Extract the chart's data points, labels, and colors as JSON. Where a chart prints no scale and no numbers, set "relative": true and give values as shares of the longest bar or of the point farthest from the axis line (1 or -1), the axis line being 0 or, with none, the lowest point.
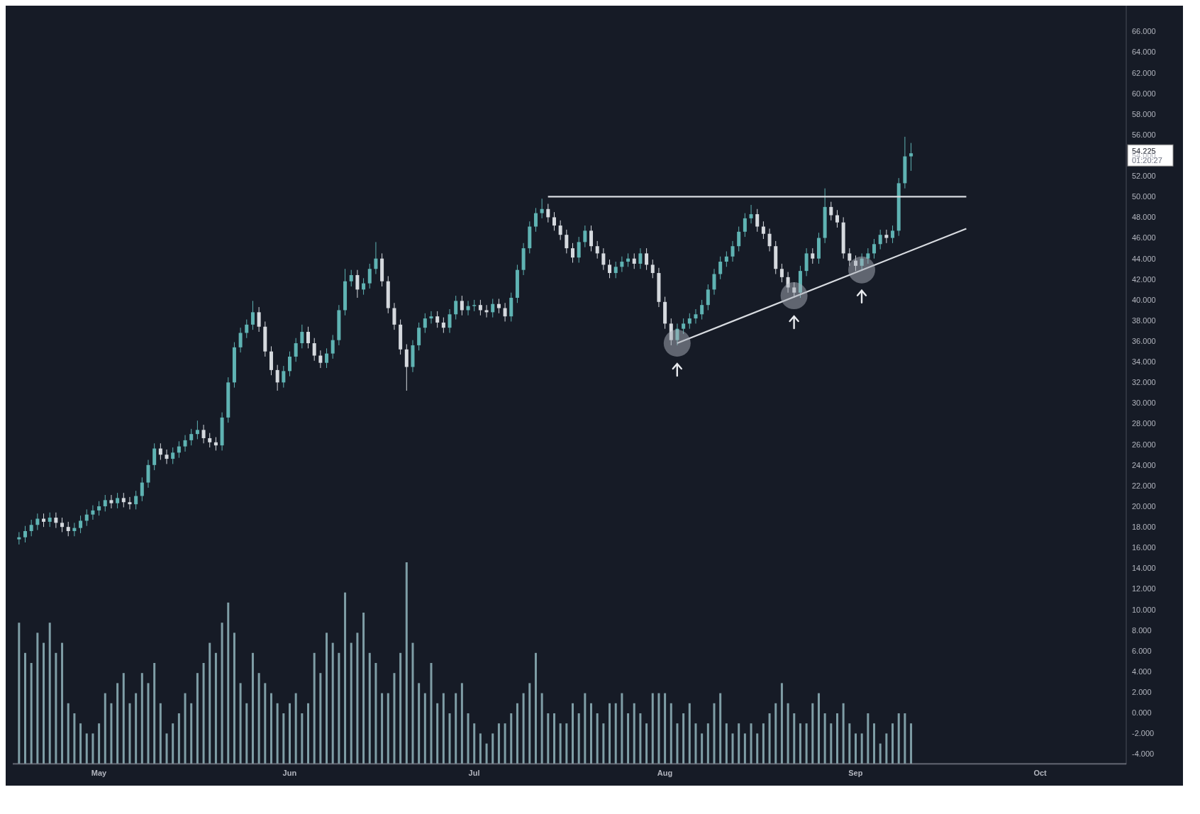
{
  "chart_data": [
    {
      "type": "candlestick",
      "x": [
        "--04-18",
        "--04-19",
        "--04-20",
        "--04-21",
        "--04-22",
        "--04-23",
        "--04-24",
        "--04-25",
        "--04-26",
        "--04-27",
        "--04-28",
        "--04-29",
        "--04-30",
        "--05-01",
        "--05-02",
        "--05-03",
        "--05-04",
        "--05-05",
        "--05-06",
        "--05-07",
        "--05-08",
        "--05-09",
        "--05-10",
        "--05-11",
        "--05-12",
        "--05-13",
        "--05-14",
        "--05-15",
        "--05-16",
        "--05-17",
        "--05-18",
        "--05-19",
        "--05-20",
        "--05-21",
        "--05-22",
        "--05-23",
        "--05-24",
        "--05-25",
        "--05-26",
        "--05-27",
        "--05-28",
        "--05-29",
        "--05-30",
        "--05-31",
        "--06-01",
        "--06-02",
        "--06-03",
        "--06-04",
        "--06-05",
        "--06-06",
        "--06-07",
        "--06-08",
        "--06-09",
        "--06-10",
        "--06-11",
        "--06-12",
        "--06-13",
        "--06-14",
        "--06-15",
        "--06-16",
        "--06-17",
        "--06-18",
        "--06-19",
        "--06-20",
        "--06-21",
        "--06-22",
        "--06-23",
        "--06-24",
        "--06-25",
        "--06-26",
        "--06-27",
        "--06-28",
        "--06-29",
        "--06-30",
        "--07-01",
        "--07-02",
        "--07-03",
        "--07-04",
        "--07-05",
        "--07-06",
        "--07-07",
        "--07-08",
        "--07-09",
        "--07-10",
        "--07-11",
        "--07-12",
        "--07-13",
        "--07-14",
        "--07-15",
        "--07-16",
        "--07-17",
        "--07-18",
        "--07-19",
        "--07-20",
        "--07-21",
        "--07-22",
        "--07-23",
        "--07-24",
        "--07-25",
        "--07-26",
        "--07-27",
        "--07-28",
        "--07-29",
        "--07-30",
        "--07-31",
        "--08-01",
        "--08-02",
        "--08-03",
        "--08-04",
        "--08-05",
        "--08-06",
        "--08-07",
        "--08-08",
        "--08-09",
        "--08-10",
        "--08-11",
        "--08-12",
        "--08-13",
        "--08-14",
        "--08-15",
        "--08-16",
        "--08-17",
        "--08-18",
        "--08-19",
        "--08-20",
        "--08-21",
        "--08-22",
        "--08-23",
        "--08-24",
        "--08-25",
        "--08-26",
        "--08-27",
        "--08-28",
        "--08-29",
        "--08-30",
        "--08-31",
        "--09-01",
        "--09-02",
        "--09-03",
        "--09-04",
        "--09-05",
        "--09-06",
        "--09-07",
        "--09-08",
        "--09-09",
        "--09-10"
      ],
      "ohlc": [
        [
          16.8,
          17.5,
          16.3,
          17.0
        ],
        [
          17.0,
          18.1,
          16.5,
          17.6
        ],
        [
          17.6,
          18.7,
          17.1,
          18.2
        ],
        [
          18.2,
          19.3,
          17.7,
          18.8
        ],
        [
          18.8,
          19.3,
          18.0,
          18.5
        ],
        [
          18.5,
          19.4,
          18.0,
          18.9
        ],
        [
          18.9,
          19.4,
          17.9,
          18.4
        ],
        [
          18.4,
          18.9,
          17.5,
          18.0
        ],
        [
          18.0,
          18.5,
          17.1,
          17.6
        ],
        [
          17.6,
          18.4,
          17.1,
          17.9
        ],
        [
          17.9,
          19.1,
          17.4,
          18.6
        ],
        [
          18.6,
          19.7,
          18.1,
          19.2
        ],
        [
          19.2,
          20.1,
          18.7,
          19.6
        ],
        [
          19.6,
          20.5,
          19.1,
          20.0
        ],
        [
          20.0,
          21.1,
          19.5,
          20.6
        ],
        [
          20.6,
          21.1,
          19.8,
          20.3
        ],
        [
          20.3,
          21.3,
          19.8,
          20.8
        ],
        [
          20.8,
          21.3,
          19.9,
          20.4
        ],
        [
          20.4,
          20.9,
          19.7,
          20.2
        ],
        [
          20.2,
          21.5,
          19.7,
          21.0
        ],
        [
          21.0,
          22.8,
          20.5,
          22.3
        ],
        [
          22.3,
          24.5,
          21.8,
          24.0
        ],
        [
          24.0,
          26.1,
          23.5,
          25.6
        ],
        [
          25.6,
          26.1,
          24.5,
          25.0
        ],
        [
          25.0,
          25.5,
          24.1,
          24.6
        ],
        [
          24.6,
          25.7,
          24.1,
          25.2
        ],
        [
          25.2,
          26.3,
          24.7,
          25.8
        ],
        [
          25.8,
          26.9,
          25.3,
          26.4
        ],
        [
          26.4,
          27.5,
          25.9,
          27.0
        ],
        [
          27.0,
          28.3,
          26.5,
          27.4
        ],
        [
          27.4,
          27.9,
          26.1,
          26.6
        ],
        [
          26.6,
          27.1,
          25.7,
          26.2
        ],
        [
          26.2,
          26.7,
          25.4,
          25.9
        ],
        [
          25.9,
          29.1,
          25.4,
          28.6
        ],
        [
          28.6,
          32.5,
          28.1,
          32.0
        ],
        [
          32.0,
          35.9,
          31.5,
          35.4
        ],
        [
          35.4,
          37.3,
          34.9,
          36.8
        ],
        [
          36.8,
          38.1,
          36.3,
          37.6
        ],
        [
          37.6,
          39.9,
          37.1,
          38.8
        ],
        [
          38.8,
          39.3,
          36.9,
          37.4
        ],
        [
          37.4,
          37.9,
          34.5,
          35.0
        ],
        [
          35.0,
          35.5,
          32.7,
          33.2
        ],
        [
          33.2,
          33.7,
          31.2,
          32.0
        ],
        [
          32.0,
          33.6,
          31.5,
          33.1
        ],
        [
          33.1,
          35.0,
          32.6,
          34.5
        ],
        [
          34.5,
          36.3,
          34.0,
          35.8
        ],
        [
          35.8,
          37.6,
          35.3,
          36.9
        ],
        [
          36.9,
          37.4,
          35.3,
          35.8
        ],
        [
          35.8,
          36.3,
          34.1,
          34.6
        ],
        [
          34.6,
          35.1,
          33.4,
          33.9
        ],
        [
          33.9,
          35.3,
          33.4,
          34.8
        ],
        [
          34.8,
          36.6,
          34.3,
          36.1
        ],
        [
          36.1,
          39.5,
          35.6,
          39.0
        ],
        [
          39.0,
          43.0,
          38.5,
          41.8
        ],
        [
          41.8,
          42.9,
          41.3,
          42.4
        ],
        [
          42.4,
          42.9,
          40.2,
          41.0
        ],
        [
          41.0,
          42.1,
          40.5,
          41.6
        ],
        [
          41.6,
          43.5,
          41.1,
          43.0
        ],
        [
          43.0,
          45.6,
          42.5,
          44.0
        ],
        [
          44.0,
          44.5,
          41.3,
          41.8
        ],
        [
          41.8,
          42.3,
          38.7,
          39.2
        ],
        [
          39.2,
          39.7,
          37.1,
          37.6
        ],
        [
          37.6,
          38.1,
          34.7,
          35.2
        ],
        [
          35.2,
          35.7,
          31.2,
          33.5
        ],
        [
          33.5,
          36.1,
          33.0,
          35.6
        ],
        [
          35.6,
          37.8,
          35.1,
          37.3
        ],
        [
          37.3,
          38.7,
          36.8,
          38.2
        ],
        [
          38.2,
          38.9,
          37.7,
          38.4
        ],
        [
          38.4,
          38.9,
          37.3,
          37.8
        ],
        [
          37.8,
          38.3,
          36.8,
          37.3
        ],
        [
          37.3,
          39.1,
          36.8,
          38.6
        ],
        [
          38.6,
          40.4,
          38.1,
          39.9
        ],
        [
          39.9,
          40.4,
          38.5,
          39.0
        ],
        [
          39.0,
          39.9,
          38.5,
          39.4
        ],
        [
          39.4,
          40.0,
          38.9,
          39.5
        ],
        [
          39.5,
          40.0,
          38.5,
          39.0
        ],
        [
          39.0,
          39.5,
          38.3,
          38.8
        ],
        [
          38.8,
          40.1,
          38.3,
          39.6
        ],
        [
          39.6,
          40.1,
          38.7,
          39.2
        ],
        [
          39.2,
          39.7,
          37.9,
          38.4
        ],
        [
          38.4,
          40.7,
          37.9,
          40.2
        ],
        [
          40.2,
          43.4,
          39.7,
          42.9
        ],
        [
          42.9,
          45.5,
          42.4,
          45.0
        ],
        [
          45.0,
          47.6,
          44.5,
          47.1
        ],
        [
          47.1,
          48.9,
          46.6,
          48.4
        ],
        [
          48.4,
          49.8,
          47.9,
          48.8
        ],
        [
          48.8,
          49.3,
          47.5,
          48.0
        ],
        [
          48.0,
          48.5,
          46.7,
          47.2
        ],
        [
          47.2,
          47.7,
          45.8,
          46.3
        ],
        [
          46.3,
          46.8,
          44.5,
          45.0
        ],
        [
          45.0,
          45.5,
          43.6,
          44.1
        ],
        [
          44.1,
          46.1,
          43.6,
          45.6
        ],
        [
          45.6,
          47.2,
          45.1,
          46.7
        ],
        [
          46.7,
          47.2,
          44.7,
          45.2
        ],
        [
          45.2,
          45.7,
          44.0,
          44.5
        ],
        [
          44.5,
          45.0,
          42.9,
          43.4
        ],
        [
          43.4,
          43.9,
          42.1,
          42.6
        ],
        [
          42.6,
          43.7,
          42.1,
          43.2
        ],
        [
          43.2,
          44.2,
          42.7,
          43.7
        ],
        [
          43.7,
          44.5,
          43.2,
          44.0
        ],
        [
          44.0,
          44.5,
          43.0,
          43.5
        ],
        [
          43.5,
          45.0,
          43.0,
          44.5
        ],
        [
          44.5,
          45.0,
          42.9,
          43.4
        ],
        [
          43.4,
          43.9,
          42.1,
          42.6
        ],
        [
          42.6,
          43.1,
          39.3,
          39.8
        ],
        [
          39.8,
          40.3,
          37.2,
          37.7
        ],
        [
          37.7,
          38.2,
          35.6,
          36.1
        ],
        [
          36.1,
          37.7,
          35.6,
          37.2
        ],
        [
          37.2,
          38.2,
          36.7,
          37.7
        ],
        [
          37.7,
          38.7,
          37.2,
          38.2
        ],
        [
          38.2,
          39.1,
          37.7,
          38.6
        ],
        [
          38.6,
          40.0,
          38.1,
          39.5
        ],
        [
          39.5,
          41.5,
          39.0,
          41.0
        ],
        [
          41.0,
          43.0,
          40.5,
          42.5
        ],
        [
          42.5,
          44.2,
          42.0,
          43.7
        ],
        [
          43.7,
          44.7,
          43.2,
          44.2
        ],
        [
          44.2,
          45.7,
          43.7,
          45.2
        ],
        [
          45.2,
          47.1,
          44.7,
          46.6
        ],
        [
          46.6,
          48.4,
          46.1,
          47.9
        ],
        [
          47.9,
          49.2,
          47.4,
          48.3
        ],
        [
          48.3,
          48.8,
          46.6,
          47.1
        ],
        [
          47.1,
          47.6,
          45.9,
          46.4
        ],
        [
          46.4,
          46.9,
          44.7,
          45.2
        ],
        [
          45.2,
          45.7,
          42.5,
          43.0
        ],
        [
          43.0,
          43.5,
          41.7,
          42.2
        ],
        [
          42.2,
          42.7,
          40.7,
          41.2
        ],
        [
          41.2,
          41.7,
          40.2,
          40.7
        ],
        [
          40.7,
          43.3,
          40.2,
          42.8
        ],
        [
          42.8,
          45.0,
          42.3,
          44.5
        ],
        [
          44.5,
          45.0,
          43.5,
          44.0
        ],
        [
          44.0,
          46.5,
          43.5,
          46.0
        ],
        [
          46.0,
          50.8,
          45.5,
          49.0
        ],
        [
          49.0,
          49.5,
          47.7,
          48.2
        ],
        [
          48.2,
          48.7,
          47.0,
          47.5
        ],
        [
          47.5,
          48.0,
          44.0,
          44.5
        ],
        [
          44.5,
          45.0,
          43.3,
          43.8
        ],
        [
          43.8,
          44.3,
          42.8,
          43.3
        ],
        [
          43.3,
          44.5,
          42.8,
          44.0
        ],
        [
          44.0,
          45.0,
          43.5,
          44.5
        ],
        [
          44.5,
          45.9,
          44.0,
          45.4
        ],
        [
          45.4,
          46.8,
          44.9,
          46.3
        ],
        [
          46.3,
          46.8,
          45.5,
          46.0
        ],
        [
          46.0,
          47.2,
          45.5,
          46.7
        ],
        [
          46.7,
          51.8,
          46.2,
          51.3
        ],
        [
          51.3,
          55.8,
          50.8,
          53.9
        ],
        [
          53.9,
          55.2,
          52.5,
          54.2
        ]
      ],
      "colors": [
        "#5fb3b3",
        "#5fb3b3",
        "#5fb3b3",
        "#5fb3b3",
        "#d5d9de",
        "#5fb3b3",
        "#d5d9de",
        "#d5d9de",
        "#d5d9de",
        "#5fb3b3",
        "#5fb3b3",
        "#5fb3b3",
        "#5fb3b3",
        "#5fb3b3",
        "#5fb3b3",
        "#d5d9de",
        "#5fb3b3",
        "#d5d9de",
        "#d5d9de",
        "#5fb3b3",
        "#5fb3b3",
        "#5fb3b3",
        "#5fb3b3",
        "#d5d9de",
        "#d5d9de",
        "#5fb3b3",
        "#5fb3b3",
        "#5fb3b3",
        "#5fb3b3",
        "#5fb3b3",
        "#d5d9de",
        "#d5d9de",
        "#d5d9de",
        "#5fb3b3",
        "#5fb3b3",
        "#5fb3b3",
        "#5fb3b3",
        "#5fb3b3",
        "#5fb3b3",
        "#d5d9de",
        "#d5d9de",
        "#d5d9de",
        "#d5d9de",
        "#5fb3b3",
        "#5fb3b3",
        "#5fb3b3",
        "#5fb3b3",
        "#d5d9de",
        "#d5d9de",
        "#d5d9de",
        "#5fb3b3",
        "#5fb3b3",
        "#5fb3b3",
        "#5fb3b3",
        "#5fb3b3",
        "#d5d9de",
        "#5fb3b3",
        "#5fb3b3",
        "#5fb3b3",
        "#d5d9de",
        "#d5d9de",
        "#d5d9de",
        "#d5d9de",
        "#d5d9de",
        "#5fb3b3",
        "#5fb3b3",
        "#5fb3b3",
        "#5fb3b3",
        "#d5d9de",
        "#d5d9de",
        "#5fb3b3",
        "#5fb3b3",
        "#d5d9de",
        "#5fb3b3",
        "#5fb3b3",
        "#d5d9de",
        "#d5d9de",
        "#5fb3b3",
        "#d5d9de",
        "#d5d9de",
        "#5fb3b3",
        "#5fb3b3",
        "#5fb3b3",
        "#5fb3b3",
        "#5fb3b3",
        "#5fb3b3",
        "#d5d9de",
        "#d5d9de",
        "#d5d9de",
        "#d5d9de",
        "#d5d9de",
        "#5fb3b3",
        "#5fb3b3",
        "#d5d9de",
        "#d5d9de",
        "#d5d9de",
        "#d5d9de",
        "#5fb3b3",
        "#5fb3b3",
        "#5fb3b3",
        "#d5d9de",
        "#5fb3b3",
        "#d5d9de",
        "#d5d9de",
        "#d5d9de",
        "#d5d9de",
        "#d5d9de",
        "#5fb3b3",
        "#5fb3b3",
        "#5fb3b3",
        "#5fb3b3",
        "#5fb3b3",
        "#5fb3b3",
        "#5fb3b3",
        "#5fb3b3",
        "#5fb3b3",
        "#5fb3b3",
        "#5fb3b3",
        "#5fb3b3",
        "#5fb3b3",
        "#d5d9de",
        "#d5d9de",
        "#d5d9de",
        "#d5d9de",
        "#d5d9de",
        "#d5d9de",
        "#d5d9de",
        "#5fb3b3",
        "#5fb3b3",
        "#d5d9de",
        "#5fb3b3",
        "#5fb3b3",
        "#d5d9de",
        "#d5d9de",
        "#d5d9de",
        "#d5d9de",
        "#d5d9de",
        "#5fb3b3",
        "#5fb3b3",
        "#5fb3b3",
        "#5fb3b3",
        "#d5d9de",
        "#5fb3b3",
        "#5fb3b3",
        "#5fb3b3",
        "#5fb3b3"
      ],
      "series": [
        {
          "type": "line",
          "x": [
            "--07-13",
            "--09-19"
          ],
          "values": [
            50,
            50
          ],
          "color": "#d8dbe0"
        },
        {
          "type": "line",
          "x": [
            "--08-03",
            "--09-19"
          ],
          "values": [
            35.8,
            46.9
          ],
          "color": "#d8dbe0"
        },
        {
          "type": "scatter",
          "x": [
            "--08-03",
            "--08-22",
            "--09-02"
          ],
          "values": [
            35.8,
            40.4,
            42.9
          ],
          "color": "#aaafb9",
          "marker": "circle"
        }
      ],
      "annotations": [
        "54.225",
        "01:20:27"
      ],
      "xlim": [
        "--04-17",
        "--10-15"
      ],
      "xticks": [
        {
          "value": "--05-01",
          "label": "May"
        },
        {
          "value": "--06-01",
          "label": "Jun"
        },
        {
          "value": "--07-01",
          "label": "Jul"
        },
        {
          "value": "--08-01",
          "label": "Aug"
        },
        {
          "value": "--09-01",
          "label": "Sep"
        },
        {
          "value": "--10-01",
          "label": "Oct"
        }
      ],
      "ylim": [
        -5,
        68.5
      ],
      "yticks": [
        {
          "value": -4,
          "label": "-4.000"
        },
        {
          "value": -2,
          "label": "-2.000"
        },
        {
          "value": 0,
          "label": "0.000"
        },
        {
          "value": 2,
          "label": "2.000"
        },
        {
          "value": 4,
          "label": "4.000"
        },
        {
          "value": 6,
          "label": "6.000"
        },
        {
          "value": 8,
          "label": "8.000"
        },
        {
          "value": 10,
          "label": "10.000"
        },
        {
          "value": 12,
          "label": "12.000"
        },
        {
          "value": 14,
          "label": "14.000"
        },
        {
          "value": 16,
          "label": "16.000"
        },
        {
          "value": 18,
          "label": "18.000"
        },
        {
          "value": 20,
          "label": "20.000"
        },
        {
          "value": 22,
          "label": "22.000"
        },
        {
          "value": 24,
          "label": "24.000"
        },
        {
          "value": 26,
          "label": "26.000"
        },
        {
          "value": 28,
          "label": "28.000"
        },
        {
          "value": 30,
          "label": "30.000"
        },
        {
          "value": 32,
          "label": "32.000"
        },
        {
          "value": 34,
          "label": "34.000"
        },
        {
          "value": 36,
          "label": "36.000"
        },
        {
          "value": 38,
          "label": "38.000"
        },
        {
          "value": 40,
          "label": "40.000"
        },
        {
          "value": 42,
          "label": "42.000"
        },
        {
          "value": 44,
          "label": "44.000"
        },
        {
          "value": 46,
          "label": "46.000"
        },
        {
          "value": 48,
          "label": "48.000"
        },
        {
          "value": 50,
          "label": "50.000"
        },
        {
          "value": 52,
          "label": "52.000"
        },
        {
          "value": 54,
          "label": "54.000"
        },
        {
          "value": 56,
          "label": "56.000"
        },
        {
          "value": 58,
          "label": "58.000"
        },
        {
          "value": 60,
          "label": "60.000"
        },
        {
          "value": 62,
          "label": "62.000"
        },
        {
          "value": 64,
          "label": "64.000"
        },
        {
          "value": 66,
          "label": "66.000"
        }
      ]
    },
    {
      "type": "bar",
      "relative": true,
      "tick_labels": false,
      "color": "#7f9ea6",
      "xlim": [
        "--04-17",
        "--10-15"
      ],
      "x": [
        "--04-18",
        "--04-19",
        "--04-20",
        "--04-21",
        "--04-22",
        "--04-23",
        "--04-24",
        "--04-25",
        "--04-26",
        "--04-27",
        "--04-28",
        "--04-29",
        "--04-30",
        "--05-01",
        "--05-02",
        "--05-03",
        "--05-04",
        "--05-05",
        "--05-06",
        "--05-07",
        "--05-08",
        "--05-09",
        "--05-10",
        "--05-11",
        "--05-12",
        "--05-13",
        "--05-14",
        "--05-15",
        "--05-16",
        "--05-17",
        "--05-18",
        "--05-19",
        "--05-20",
        "--05-21",
        "--05-22",
        "--05-23",
        "--05-24",
        "--05-25",
        "--05-26",
        "--05-27",
        "--05-28",
        "--05-29",
        "--05-30",
        "--05-31",
        "--06-01",
        "--06-02",
        "--06-03",
        "--06-04",
        "--06-05",
        "--06-06",
        "--06-07",
        "--06-08",
        "--06-09",
        "--06-10",
        "--06-11",
        "--06-12",
        "--06-13",
        "--06-14",
        "--06-15",
        "--06-16",
        "--06-17",
        "--06-18",
        "--06-19",
        "--06-20",
        "--06-21",
        "--06-22",
        "--06-23",
        "--06-24",
        "--06-25",
        "--06-26",
        "--06-27",
        "--06-28",
        "--06-29",
        "--06-30",
        "--07-01",
        "--07-02",
        "--07-03",
        "--07-04",
        "--07-05",
        "--07-06",
        "--07-07",
        "--07-08",
        "--07-09",
        "--07-10",
        "--07-11",
        "--07-12",
        "--07-13",
        "--07-14",
        "--07-15",
        "--07-16",
        "--07-17",
        "--07-18",
        "--07-19",
        "--07-20",
        "--07-21",
        "--07-22",
        "--07-23",
        "--07-24",
        "--07-25",
        "--07-26",
        "--07-27",
        "--07-28",
        "--07-29",
        "--07-30",
        "--07-31",
        "--08-01",
        "--08-02",
        "--08-03",
        "--08-04",
        "--08-05",
        "--08-06",
        "--08-07",
        "--08-08",
        "--08-09",
        "--08-10",
        "--08-11",
        "--08-12",
        "--08-13",
        "--08-14",
        "--08-15",
        "--08-16",
        "--08-17",
        "--08-18",
        "--08-19",
        "--08-20",
        "--08-21",
        "--08-22",
        "--08-23",
        "--08-24",
        "--08-25",
        "--08-26",
        "--08-27",
        "--08-28",
        "--08-29",
        "--08-30",
        "--08-31",
        "--09-01",
        "--09-02",
        "--09-03",
        "--09-04",
        "--09-05",
        "--09-06",
        "--09-07",
        "--09-08",
        "--09-09",
        "--09-10"
      ],
      "values": [
        0.7,
        0.55,
        0.5,
        0.65,
        0.6,
        0.7,
        0.55,
        0.6,
        0.3,
        0.25,
        0.2,
        0.15,
        0.15,
        0.2,
        0.35,
        0.3,
        0.4,
        0.45,
        0.3,
        0.35,
        0.45,
        0.4,
        0.5,
        0.3,
        0.15,
        0.2,
        0.25,
        0.35,
        0.3,
        0.45,
        0.5,
        0.6,
        0.55,
        0.7,
        0.8,
        0.65,
        0.4,
        0.3,
        0.55,
        0.45,
        0.4,
        0.35,
        0.3,
        0.25,
        0.3,
        0.35,
        0.25,
        0.3,
        0.55,
        0.45,
        0.65,
        0.6,
        0.55,
        0.85,
        0.6,
        0.65,
        0.75,
        0.55,
        0.5,
        0.35,
        0.35,
        0.45,
        0.55,
        1.0,
        0.6,
        0.4,
        0.35,
        0.5,
        0.3,
        0.35,
        0.25,
        0.35,
        0.4,
        0.25,
        0.2,
        0.15,
        0.1,
        0.15,
        0.2,
        0.2,
        0.25,
        0.3,
        0.35,
        0.4,
        0.55,
        0.35,
        0.25,
        0.25,
        0.2,
        0.2,
        0.3,
        0.25,
        0.35,
        0.3,
        0.25,
        0.2,
        0.3,
        0.3,
        0.35,
        0.25,
        0.3,
        0.25,
        0.2,
        0.35,
        0.35,
        0.35,
        0.3,
        0.2,
        0.25,
        0.3,
        0.2,
        0.15,
        0.2,
        0.3,
        0.35,
        0.2,
        0.15,
        0.2,
        0.15,
        0.2,
        0.15,
        0.2,
        0.25,
        0.3,
        0.4,
        0.3,
        0.25,
        0.2,
        0.2,
        0.3,
        0.35,
        0.25,
        0.2,
        0.25,
        0.3,
        0.2,
        0.15,
        0.15,
        0.25,
        0.2,
        0.1,
        0.15,
        0.2,
        0.25,
        0.25,
        0.2
      ]
    }
  ]
}
